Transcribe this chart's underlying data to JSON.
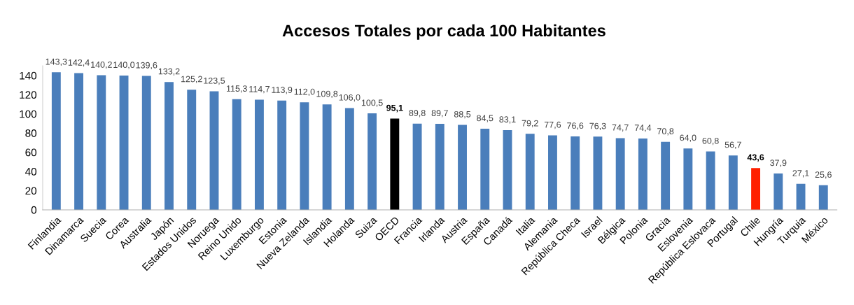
{
  "chart_data": {
    "type": "bar",
    "title": "Accesos Totales por cada 100 Habitantes",
    "categories": [
      "Finlandia",
      "Dinamarca",
      "Suecia",
      "Corea",
      "Australia",
      "Japón",
      "Estados Unidos",
      "Noruega",
      "Reino Unido",
      "Luxemburgo",
      "Estonia",
      "Nueva Zelanda",
      "Islandia",
      "Holanda",
      "Suiza",
      "OECD",
      "Francia",
      "Irlanda",
      "Austria",
      "España",
      "Canadá",
      "Italia",
      "Alemania",
      "República Checa",
      "Israel",
      "Bélgica",
      "Polonia",
      "Gracia",
      "Eslovenia",
      "República Eslovaca",
      "Portugal",
      "Chile",
      "Hungría",
      "Turquia",
      "México"
    ],
    "values": [
      143.3,
      142.4,
      140.2,
      140.0,
      139.6,
      133.2,
      125.2,
      123.5,
      115.3,
      114.7,
      113.9,
      112.0,
      109.8,
      106.0,
      100.5,
      95.1,
      89.8,
      89.7,
      88.5,
      84.5,
      83.1,
      79.2,
      77.6,
      76.6,
      76.3,
      74.7,
      74.4,
      70.8,
      64.0,
      60.8,
      56.7,
      43.6,
      37.9,
      27.1,
      25.6
    ],
    "value_labels": [
      "143,3",
      "142,4",
      "140,2",
      "140,0",
      "139,6",
      "133,2",
      "125,2",
      "123,5",
      "115,3",
      "114,7",
      "113,9",
      "112,0",
      "109,8",
      "106,0",
      "100,5",
      "95,1",
      "89,8",
      "89,7",
      "88,5",
      "84,5",
      "83,1",
      "79,2",
      "77,6",
      "76,6",
      "76,3",
      "74,7",
      "74,4",
      "70,8",
      "64,0",
      "60,8",
      "56,7",
      "43,6",
      "37,9",
      "27,1",
      "25,6"
    ],
    "colors": [
      "#4a7ebb",
      "#4a7ebb",
      "#4a7ebb",
      "#4a7ebb",
      "#4a7ebb",
      "#4a7ebb",
      "#4a7ebb",
      "#4a7ebb",
      "#4a7ebb",
      "#4a7ebb",
      "#4a7ebb",
      "#4a7ebb",
      "#4a7ebb",
      "#4a7ebb",
      "#4a7ebb",
      "#000000",
      "#4a7ebb",
      "#4a7ebb",
      "#4a7ebb",
      "#4a7ebb",
      "#4a7ebb",
      "#4a7ebb",
      "#4a7ebb",
      "#4a7ebb",
      "#4a7ebb",
      "#4a7ebb",
      "#4a7ebb",
      "#4a7ebb",
      "#4a7ebb",
      "#4a7ebb",
      "#4a7ebb",
      "#ff2000",
      "#4a7ebb",
      "#4a7ebb",
      "#4a7ebb"
    ],
    "ylim": [
      0,
      150
    ],
    "yticks": [
      0,
      20,
      40,
      60,
      80,
      100,
      120,
      140
    ],
    "grid": false,
    "legend": false
  }
}
